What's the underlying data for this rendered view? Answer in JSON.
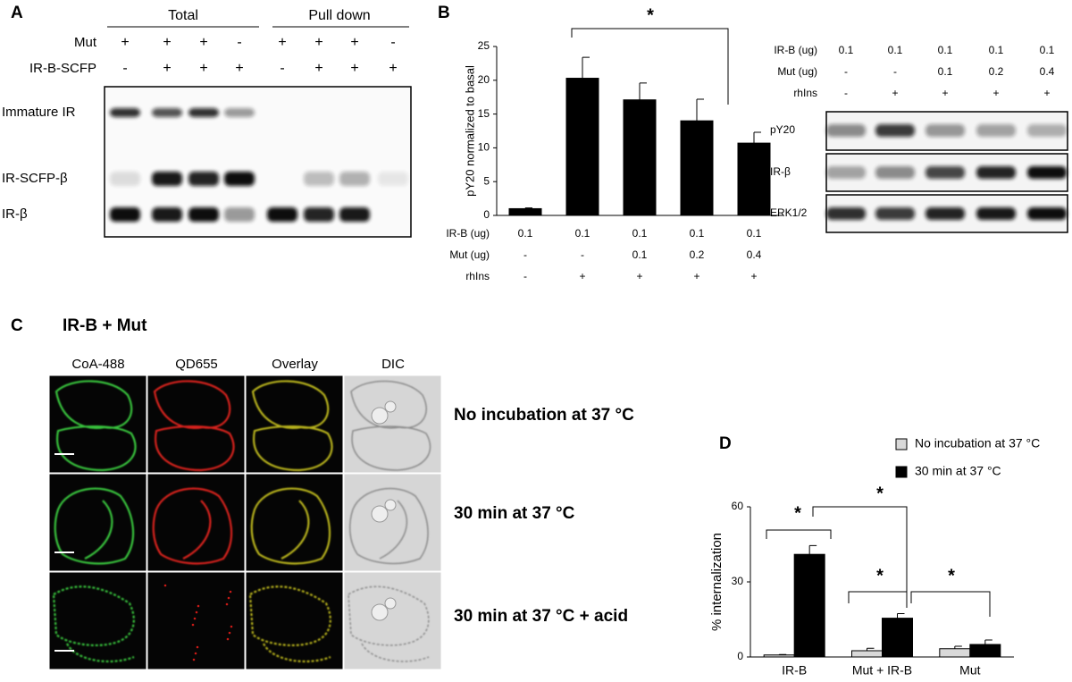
{
  "panel_labels": [
    "A",
    "B",
    "C",
    "D"
  ],
  "blot_a": {
    "headers": [
      "Total",
      "Pull down"
    ],
    "rows": [
      {
        "label": "Mut",
        "values": [
          "+",
          "+",
          "+",
          "-",
          "+",
          "+",
          "+",
          "-"
        ]
      },
      {
        "label": "IR-B-SCFP",
        "values": [
          "-",
          "+",
          "+",
          "+",
          "-",
          "+",
          "+",
          "+"
        ]
      }
    ],
    "bands": [
      "Immature IR",
      "IR-SCFP-β",
      "IR-β"
    ]
  },
  "chart_data": [
    {
      "type": "bar",
      "y_label": "pY20 normalized to basal",
      "categories": [
        null,
        null,
        null,
        null,
        null
      ],
      "values": [
        1,
        20.3,
        17.1,
        14,
        10.7
      ],
      "errors": [
        0.1,
        3.1,
        2.5,
        3.2,
        1.6
      ],
      "color": "#000000",
      "ylim": [
        0,
        25
      ],
      "yticks": [
        0,
        5,
        10,
        15,
        20,
        25
      ],
      "annotations": [
        "*"
      ],
      "conditions": [
        {
          "label": "IR-B (ug)",
          "values": [
            "0.1",
            "0.1",
            "0.1",
            "0.1",
            "0.1"
          ]
        },
        {
          "label": "Mut (ug)",
          "values": [
            "-",
            "-",
            "0.1",
            "0.2",
            "0.4"
          ]
        },
        {
          "label": "rhIns",
          "values": [
            "-",
            "+",
            "+",
            "+",
            "+"
          ]
        }
      ]
    },
    {
      "type": "bar",
      "y_label": "% internalization",
      "categories": [
        "IR-B",
        "Mut + IR-B",
        "Mut"
      ],
      "series": [
        {
          "name": "No incubation at 37 °C",
          "color": "#d9d9d9",
          "values": [
            0.8,
            2.5,
            3.3
          ],
          "errors": [
            0.2,
            1,
            1
          ]
        },
        {
          "name": "30 min at 37 °C",
          "color": "#000000",
          "values": [
            41,
            15.5,
            5
          ],
          "errors": [
            3.5,
            1.8,
            1.8
          ]
        }
      ],
      "ylim": [
        0,
        60
      ],
      "yticks": [
        0,
        30,
        60
      ],
      "legend": "top-right",
      "annotations": [
        "*",
        "*",
        "*",
        "*"
      ]
    }
  ],
  "blot_b": {
    "rows": [
      {
        "label": "IR-B (ug)",
        "values": [
          "0.1",
          "0.1",
          "0.1",
          "0.1",
          "0.1"
        ]
      },
      {
        "label": "Mut (ug)",
        "values": [
          "-",
          "-",
          "0.1",
          "0.2",
          "0.4"
        ]
      },
      {
        "label": "rhIns",
        "values": [
          "-",
          "+",
          "+",
          "+",
          "+"
        ]
      }
    ],
    "bands": [
      "pY20",
      "IR-β",
      "ERK1/2"
    ]
  },
  "microscopy": {
    "title": "IR-B + Mut",
    "channels": [
      "CoA-488",
      "QD655",
      "Overlay",
      "DIC"
    ],
    "conditions": [
      "No incubation at 37 °C",
      "30 min at 37 °C",
      "30 min at 37 °C + acid"
    ]
  }
}
